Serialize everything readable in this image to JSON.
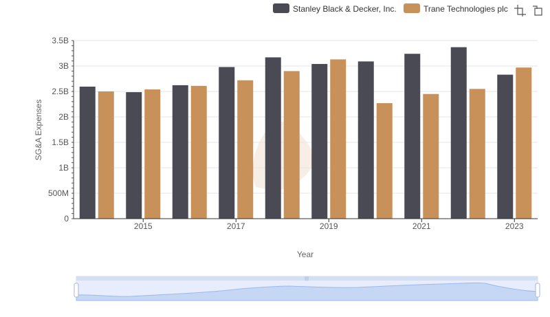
{
  "toolbar": {
    "icons": [
      "crop-select-icon",
      "reset-zoom-icon"
    ]
  },
  "chart_data": {
    "type": "bar",
    "title": "",
    "xlabel": "Year",
    "ylabel": "SG&A Expenses",
    "categories": [
      2014,
      2015,
      2016,
      2017,
      2018,
      2019,
      2020,
      2021,
      2022,
      2023
    ],
    "x_tick_labels": [
      "2015",
      "2017",
      "2019",
      "2021",
      "2023"
    ],
    "x_tick_values": [
      2015,
      2017,
      2019,
      2021,
      2023
    ],
    "y_tick_labels": [
      "0",
      "500M",
      "1B",
      "1.5B",
      "2B",
      "2.5B",
      "3B",
      "3.5B"
    ],
    "y_tick_values": [
      0,
      500000000,
      1000000000,
      1500000000,
      2000000000,
      2500000000,
      3000000000,
      3500000000
    ],
    "ylim": [
      0,
      3500000000
    ],
    "grid": true,
    "legend_position": "top-right",
    "series": [
      {
        "name": "Stanley Black & Decker, Inc.",
        "color": "#4a4a55",
        "values": [
          2595000000,
          2486000000,
          2623000000,
          2980000000,
          3170000000,
          3040000000,
          3090000000,
          3240000000,
          3370000000,
          2830000000
        ]
      },
      {
        "name": "Trane Technologies plc",
        "color": "#c8915a",
        "values": [
          2500000000,
          2540000000,
          2610000000,
          2720000000,
          2900000000,
          3130000000,
          2270000000,
          2450000000,
          2550000000,
          2970000000
        ]
      }
    ]
  }
}
